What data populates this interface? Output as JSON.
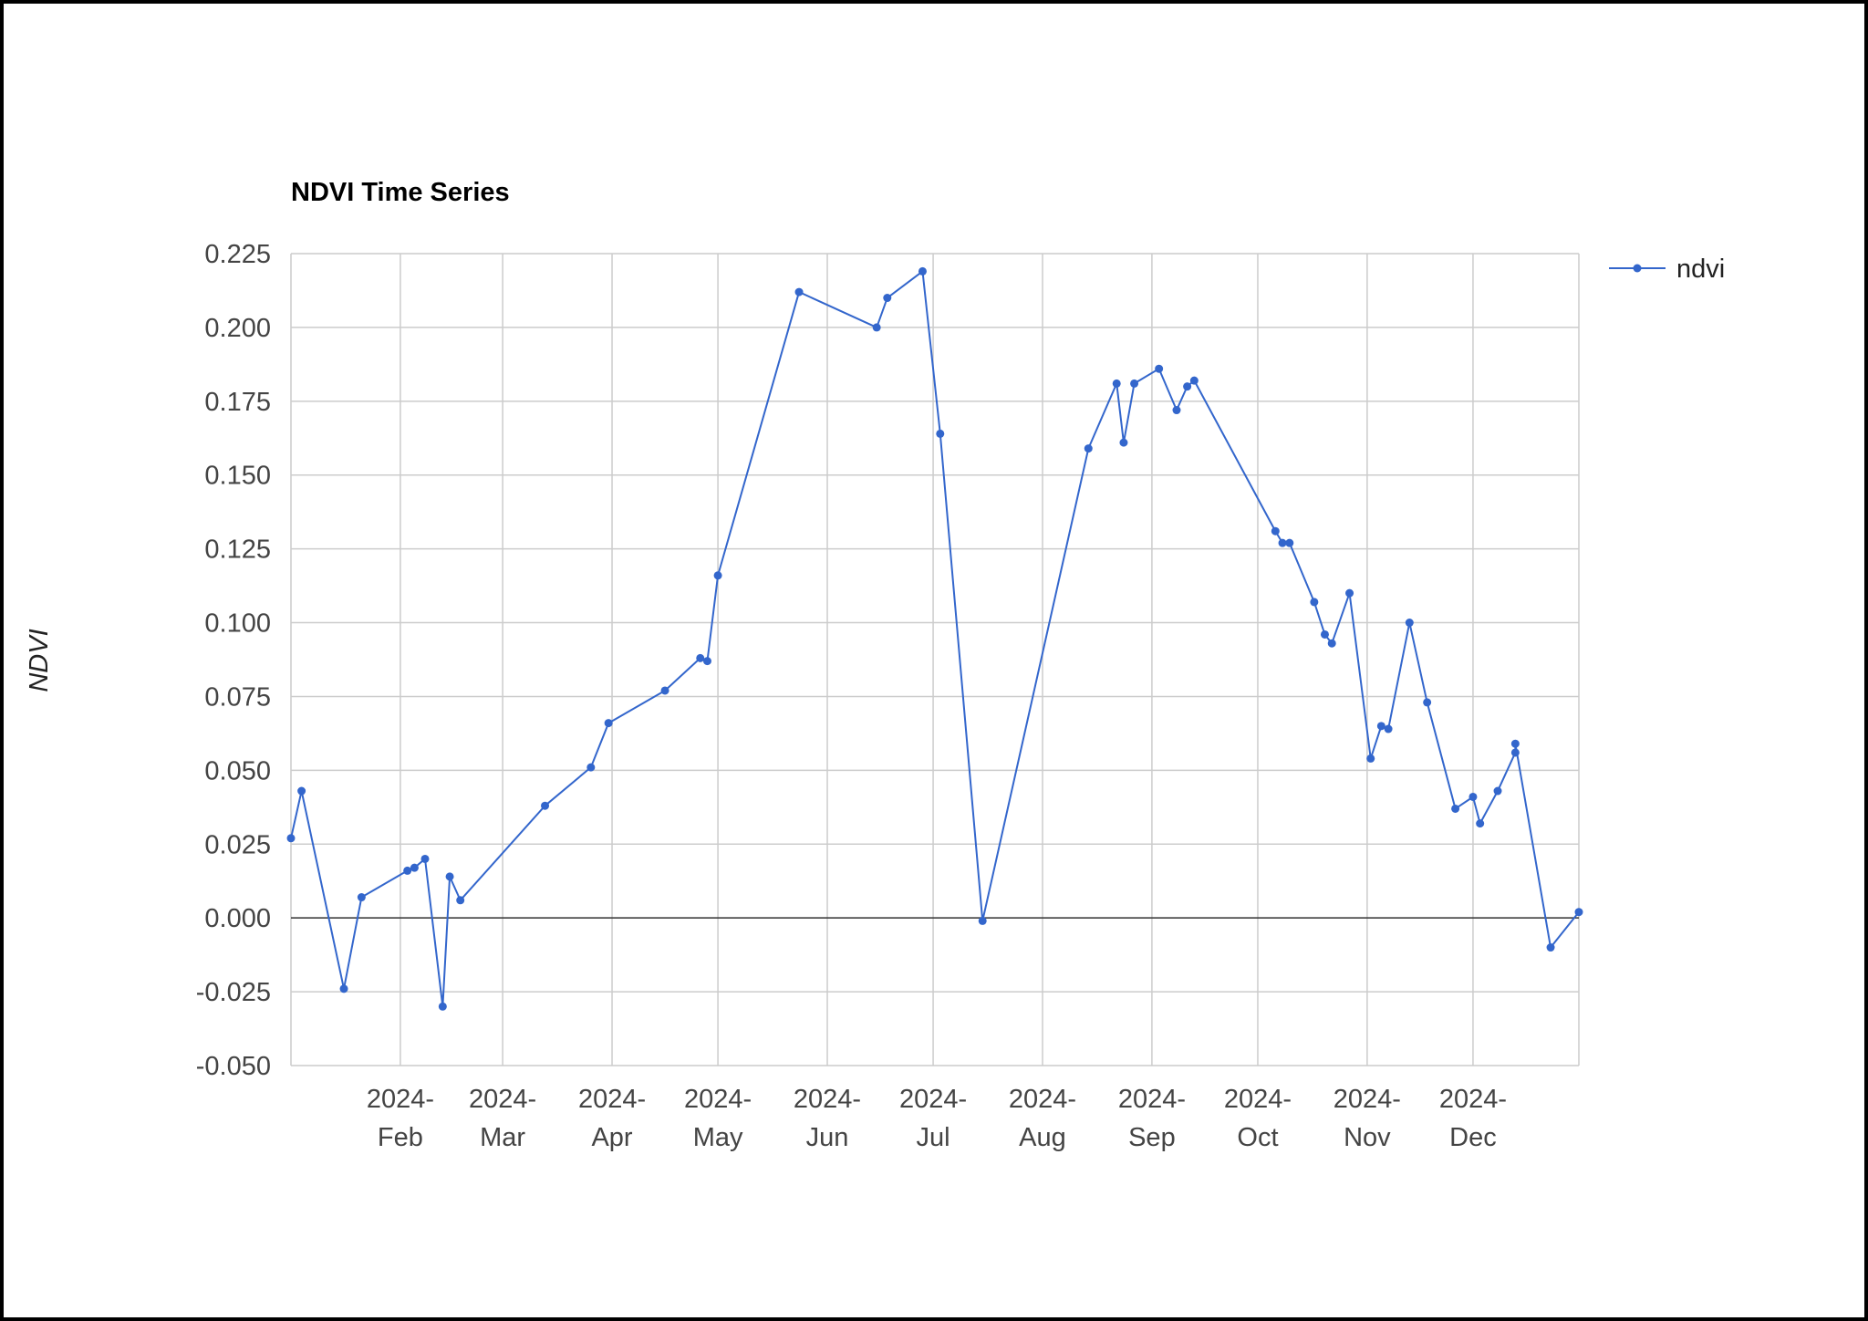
{
  "chart_data": {
    "type": "line",
    "title": "NDVI Time Series",
    "xlabel": "",
    "ylabel": "NDVI",
    "ylim": [
      -0.05,
      0.225
    ],
    "xlim": [
      "2024-01-01",
      "2024-12-31"
    ],
    "yticks": [
      {
        "value": 0.225,
        "label": "0.225"
      },
      {
        "value": 0.2,
        "label": "0.200"
      },
      {
        "value": 0.175,
        "label": "0.175"
      },
      {
        "value": 0.15,
        "label": "0.150"
      },
      {
        "value": 0.125,
        "label": "0.125"
      },
      {
        "value": 0.1,
        "label": "0.100"
      },
      {
        "value": 0.075,
        "label": "0.075"
      },
      {
        "value": 0.05,
        "label": "0.050"
      },
      {
        "value": 0.025,
        "label": "0.025"
      },
      {
        "value": 0.0,
        "label": "0.000"
      },
      {
        "value": -0.025,
        "label": "-0.025"
      },
      {
        "value": -0.05,
        "label": "-0.050"
      }
    ],
    "xticks": [
      {
        "date": "2024-02-01",
        "line1": "2024-",
        "line2": "Feb"
      },
      {
        "date": "2024-03-01",
        "line1": "2024-",
        "line2": "Mar"
      },
      {
        "date": "2024-04-01",
        "line1": "2024-",
        "line2": "Apr"
      },
      {
        "date": "2024-05-01",
        "line1": "2024-",
        "line2": "May"
      },
      {
        "date": "2024-06-01",
        "line1": "2024-",
        "line2": "Jun"
      },
      {
        "date": "2024-07-01",
        "line1": "2024-",
        "line2": "Jul"
      },
      {
        "date": "2024-08-01",
        "line1": "2024-",
        "line2": "Aug"
      },
      {
        "date": "2024-09-01",
        "line1": "2024-",
        "line2": "Sep"
      },
      {
        "date": "2024-10-01",
        "line1": "2024-",
        "line2": "Oct"
      },
      {
        "date": "2024-11-01",
        "line1": "2024-",
        "line2": "Nov"
      },
      {
        "date": "2024-12-01",
        "line1": "2024-",
        "line2": "Dec"
      }
    ],
    "grid": true,
    "legend_position": "right",
    "colors": {
      "line": "#3366cc",
      "grid": "#cccccc",
      "zero_line": "#333333",
      "frame": "#000000"
    },
    "series": [
      {
        "name": "ndvi",
        "x": [
          "2024-01-01",
          "2024-01-04",
          "2024-01-16",
          "2024-01-21",
          "2024-02-03",
          "2024-02-05",
          "2024-02-08",
          "2024-02-13",
          "2024-02-15",
          "2024-02-18",
          "2024-03-13",
          "2024-03-26",
          "2024-03-31",
          "2024-04-16",
          "2024-04-26",
          "2024-04-28",
          "2024-05-01",
          "2024-05-24",
          "2024-06-15",
          "2024-06-18",
          "2024-06-28",
          "2024-07-03",
          "2024-07-15",
          "2024-08-14",
          "2024-08-22",
          "2024-08-24",
          "2024-08-27",
          "2024-09-03",
          "2024-09-08",
          "2024-09-11",
          "2024-09-13",
          "2024-10-06",
          "2024-10-08",
          "2024-10-10",
          "2024-10-17",
          "2024-10-20",
          "2024-10-22",
          "2024-10-27",
          "2024-11-02",
          "2024-11-05",
          "2024-11-07",
          "2024-11-13",
          "2024-11-18",
          "2024-11-26",
          "2024-12-01",
          "2024-12-03",
          "2024-12-08",
          "2024-12-13",
          "2024-12-13",
          "2024-12-23",
          "2024-12-31"
        ],
        "y": [
          0.027,
          0.043,
          -0.024,
          0.007,
          0.016,
          0.017,
          0.02,
          -0.03,
          0.014,
          0.006,
          0.038,
          0.051,
          0.066,
          0.077,
          0.088,
          0.087,
          0.116,
          0.212,
          0.2,
          0.21,
          0.219,
          0.164,
          -0.001,
          0.159,
          0.181,
          0.161,
          0.181,
          0.186,
          0.172,
          0.18,
          0.182,
          0.131,
          0.127,
          0.127,
          0.107,
          0.096,
          0.093,
          0.11,
          0.054,
          0.065,
          0.064,
          0.1,
          0.073,
          0.037,
          0.041,
          0.032,
          0.043,
          0.056,
          0.059,
          -0.01,
          0.002
        ]
      }
    ]
  }
}
